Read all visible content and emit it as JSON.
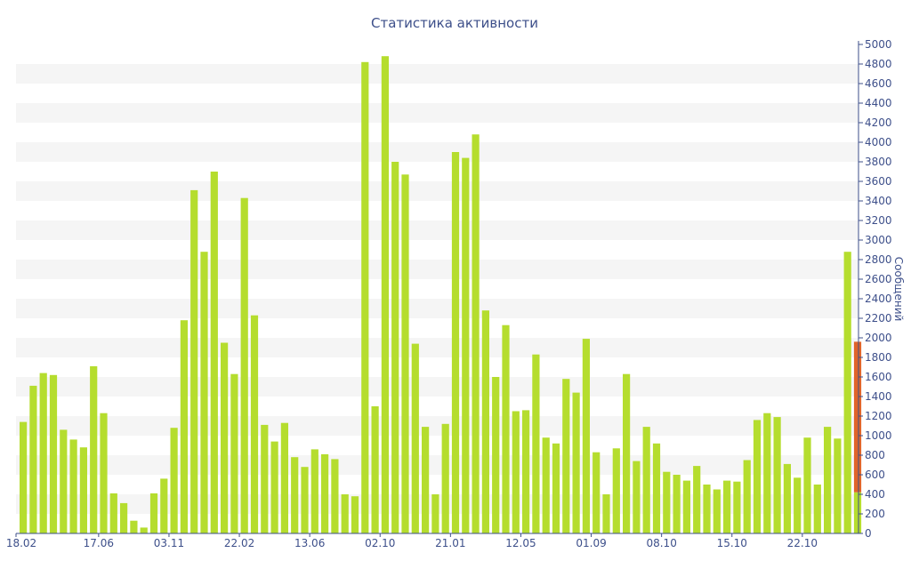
{
  "chart_data": {
    "type": "bar",
    "title": "Статистика активности",
    "ylabel": "Сообщений",
    "xlabel": "",
    "ylim": [
      0,
      5000
    ],
    "y_ticks": [
      0,
      200,
      400,
      600,
      800,
      1000,
      1200,
      1400,
      1600,
      1800,
      2000,
      2200,
      2400,
      2600,
      2800,
      3000,
      3200,
      3400,
      3600,
      3800,
      4000,
      4200,
      4400,
      4600,
      4800,
      5000
    ],
    "x_tick_labels": [
      {
        "label": "18.02",
        "index": 0
      },
      {
        "label": "17.06",
        "index": 8
      },
      {
        "label": "03.11",
        "index": 15
      },
      {
        "label": "22.02",
        "index": 22
      },
      {
        "label": "13.06",
        "index": 29
      },
      {
        "label": "02.10",
        "index": 36
      },
      {
        "label": "21.01",
        "index": 43
      },
      {
        "label": "12.05",
        "index": 50
      },
      {
        "label": "01.09",
        "index": 57
      },
      {
        "label": "08.10",
        "index": 64
      },
      {
        "label": "15.10",
        "index": 71
      },
      {
        "label": "22.10",
        "index": 78
      }
    ],
    "grid": "alternating horizontal bands",
    "colors": {
      "bar": "#b5dd2e",
      "current": "#e0642a",
      "band": "#f5f5f5",
      "axis": "#3d4f8a"
    },
    "values": [
      1140,
      1510,
      1640,
      1620,
      1060,
      960,
      880,
      1710,
      1230,
      410,
      310,
      130,
      60,
      410,
      560,
      1080,
      2180,
      3510,
      2880,
      3700,
      1950,
      1630,
      3430,
      2230,
      1110,
      940,
      1130,
      780,
      680,
      860,
      810,
      760,
      400,
      380,
      4820,
      1300,
      4880,
      3800,
      3670,
      1940,
      1090,
      400,
      1120,
      3900,
      3840,
      4080,
      2280,
      1600,
      2130,
      1250,
      1260,
      1830,
      980,
      920,
      1580,
      1440,
      1990,
      830,
      400,
      870,
      1630,
      740,
      1090,
      920,
      630,
      600,
      540,
      690,
      500,
      450,
      540,
      530,
      750,
      1160,
      1230,
      1190,
      710,
      570,
      980,
      500,
      1090,
      970,
      2880
    ],
    "current": {
      "total": 1960,
      "prior": 420
    }
  }
}
